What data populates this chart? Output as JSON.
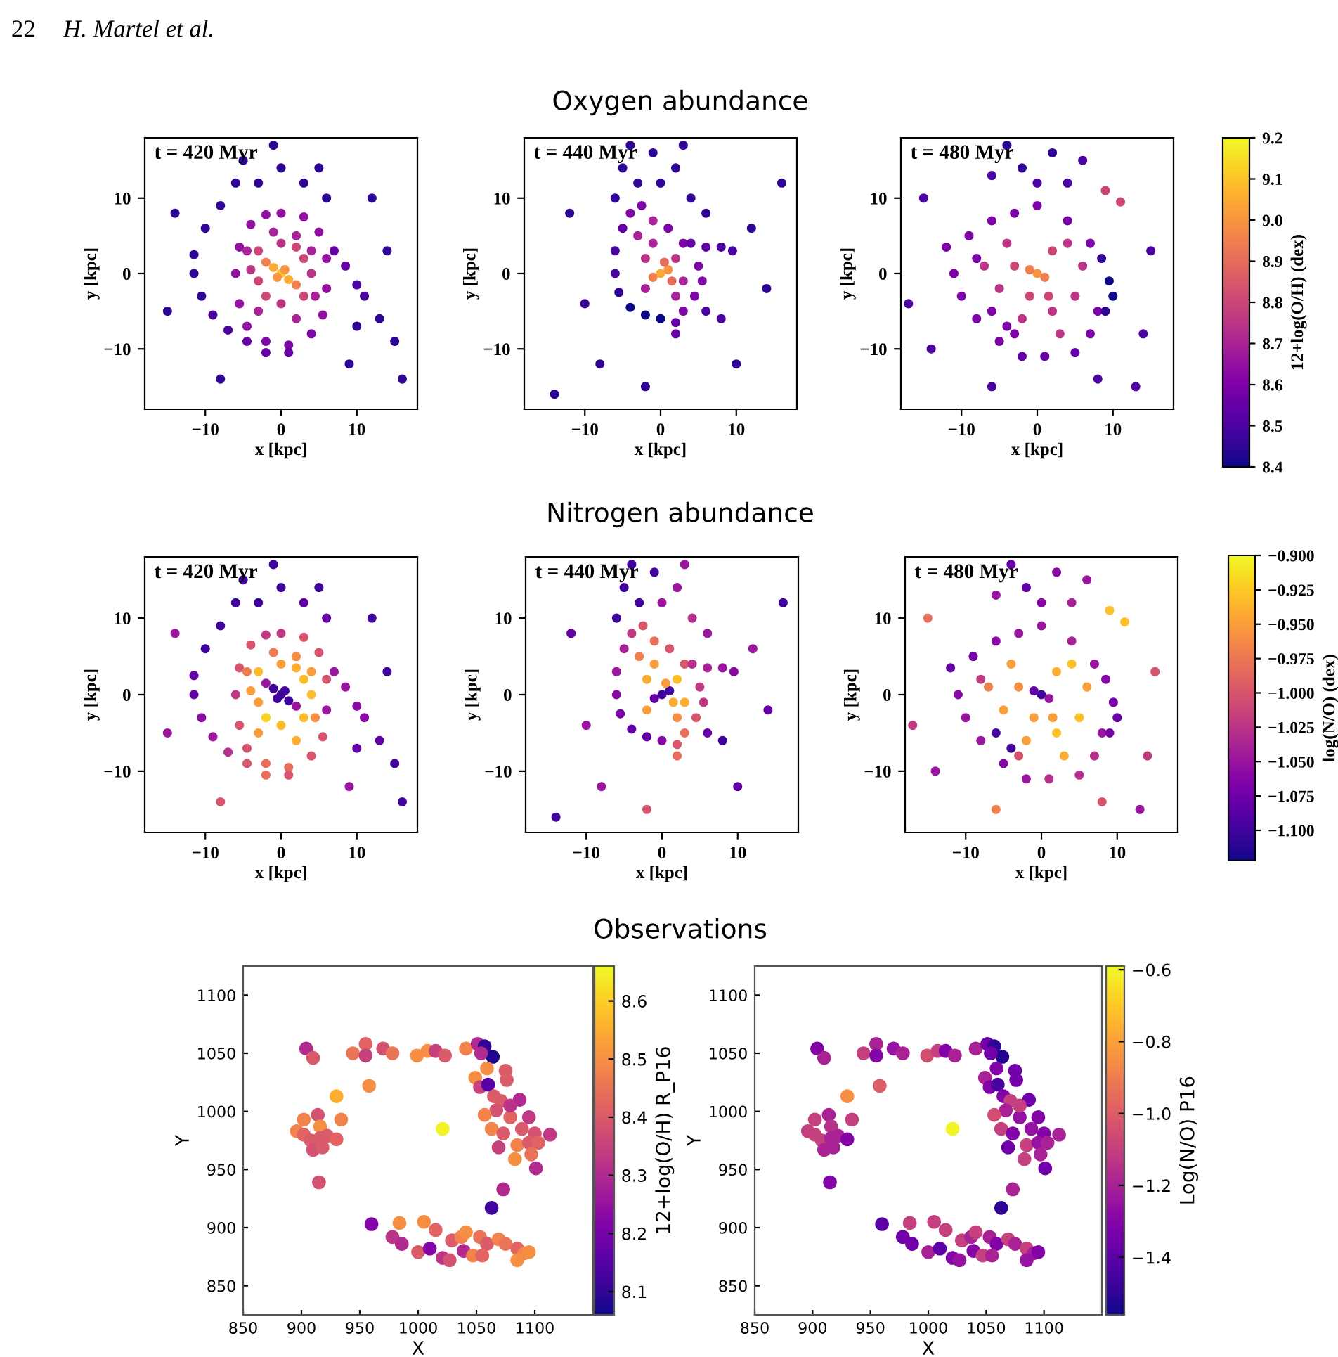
{
  "chart_data": [
    {
      "type": "scatter",
      "annotations": [
        "t = 420 Myr",
        "22",
        "H. Martel et al."
      ],
      "xlabel": "x [kpc]",
      "ylabel": "y [kpc]",
      "xlim": [
        -18,
        18
      ],
      "ylim": [
        -18,
        18
      ],
      "xticks": [
        -10,
        0,
        10
      ],
      "yticks": [
        -10,
        0,
        10
      ],
      "marker": "circle",
      "series": [
        {
          "x": [
            0,
            -1,
            1,
            -2,
            2,
            -0.5,
            0.5,
            -3,
            3,
            -3,
            3,
            0,
            0,
            -4,
            4,
            -2,
            2,
            0,
            3,
            5,
            6,
            6,
            5.5,
            4,
            1,
            -2,
            -4.5,
            -5.5,
            -6,
            -5.5,
            -4,
            -2,
            -1,
            2,
            4,
            -4.5,
            4.5,
            -3,
            2,
            -6,
            -8,
            -10,
            -11.5,
            -11.5,
            -10.5,
            -9,
            -7,
            -4.5,
            -2,
            1,
            7,
            8.5,
            10,
            11,
            -3,
            0,
            3,
            6,
            -1,
            5,
            -5,
            13,
            15,
            9,
            14,
            -15,
            -14,
            10,
            -8,
            16,
            12
          ],
          "values": [
            0,
            0.8,
            -0.8,
            1.5,
            -1.5,
            -0.5,
            0.5,
            3,
            -3,
            -1,
            2,
            4,
            -4,
            0.5,
            0,
            -3,
            3.5,
            8,
            7.5,
            5.5,
            2,
            -2,
            -5.5,
            -8,
            -9.5,
            -9,
            -7,
            -4,
            0,
            3.5,
            6.5,
            7.8,
            5.5,
            5,
            3,
            3,
            -3,
            -5,
            -6,
            12,
            9,
            6,
            2.5,
            0,
            -3,
            -5.5,
            -7.5,
            -9,
            -10.5,
            -10.5,
            3,
            1,
            -1.5,
            -3,
            12,
            14,
            12,
            10,
            17,
            14,
            15,
            -6,
            -9,
            -12,
            3,
            -5,
            8,
            -7,
            -14,
            -14,
            10
          ],
          "colors": [
            "#fcc429",
            "#fcab34",
            "#fcab34",
            "#f0804e",
            "#f0804e",
            "#f79540",
            "#f79540",
            "#cc4778",
            "#cc4778",
            "#cc4778",
            "#cc4778",
            "#bb3587",
            "#bb3587",
            "#bb3587",
            "#bb3587",
            "#cc4778",
            "#cc4778",
            "#9311a1",
            "#9311a1",
            "#9311a1",
            "#9311a1",
            "#9311a1",
            "#9311a1",
            "#7d06a6",
            "#7d06a6",
            "#7d06a6",
            "#9311a1",
            "#9311a1",
            "#9311a1",
            "#9311a1",
            "#9311a1",
            "#9311a1",
            "#a82395",
            "#a82395",
            "#a82395",
            "#a82395",
            "#a82395",
            "#a82395",
            "#a82395",
            "#2e0595",
            "#2e0595",
            "#2e0595",
            "#2e0595",
            "#2e0595",
            "#2e0595",
            "#4b03a0",
            "#4b03a0",
            "#6500a7",
            "#6500a7",
            "#6500a7",
            "#6500a7",
            "#6500a7",
            "#4b03a0",
            "#4b03a0",
            "#2e0595",
            "#2e0595",
            "#2e0595",
            "#2e0595",
            "#2e0595",
            "#2e0595",
            "#2e0595",
            "#2e0595",
            "#2e0595",
            "#2e0595",
            "#2e0595",
            "#2e0595",
            "#2e0595",
            "#2e0595",
            "#2e0595",
            "#2e0595",
            "#2e0595"
          ]
        }
      ]
    },
    {
      "type": "scatter",
      "title": "Oxygen abundance",
      "annotations": [
        "t = 440 Myr"
      ],
      "xlabel": "x [kpc]",
      "ylabel": "y [kpc]",
      "xlim": [
        -18,
        18
      ],
      "ylim": [
        -18,
        18
      ],
      "xticks": [
        -10,
        0,
        10
      ],
      "yticks": [
        -10,
        0,
        10
      ],
      "marker": "circle",
      "series": [
        {
          "x": [
            0,
            1,
            -1,
            0.5,
            1.5,
            -2,
            2,
            -2,
            3,
            -1,
            2,
            -3,
            -1,
            -2.5,
            -4,
            -5,
            -6,
            -6,
            -5.5,
            -4,
            -2,
            0,
            2,
            3,
            4.5,
            5.5,
            5,
            3,
            1,
            4,
            6,
            8,
            9.5,
            -3,
            0,
            2,
            -1,
            -5,
            4,
            6,
            -6,
            3,
            -4,
            6,
            8,
            2,
            -12,
            12,
            14,
            -10,
            -8,
            10,
            -14,
            16,
            -2
          ],
          "values": [
            0,
            0.5,
            -0.5,
            1.5,
            -1,
            2,
            2,
            -2,
            -1,
            4,
            -3,
            5,
            7,
            9,
            8,
            6,
            3,
            0,
            -2.5,
            -4.5,
            -5.5,
            -6,
            -6.5,
            -5,
            -3,
            -1,
            1,
            4,
            6,
            4,
            3.5,
            3.5,
            3,
            12,
            12,
            14,
            16,
            14,
            10,
            8,
            10,
            17,
            17,
            -5,
            -6,
            -8,
            8,
            6,
            -2,
            -4,
            -12,
            -12,
            -16,
            12,
            -15
          ],
          "colors": [
            "#fcab34",
            "#f79540",
            "#f0804e",
            "#e56c5c",
            "#e56c5c",
            "#bb3587",
            "#bb3587",
            "#a82395",
            "#a82395",
            "#a82395",
            "#a82395",
            "#a82395",
            "#a82395",
            "#7d06a6",
            "#7d06a6",
            "#6500a7",
            "#4b03a0",
            "#4b03a0",
            "#2e0595",
            "#0d0887",
            "#0d0887",
            "#0d0887",
            "#6500a7",
            "#7d06a6",
            "#7d06a6",
            "#7d06a6",
            "#7d06a6",
            "#7d06a6",
            "#7d06a6",
            "#6500a7",
            "#6500a7",
            "#4b03a0",
            "#4b03a0",
            "#2e0595",
            "#2e0595",
            "#2e0595",
            "#2e0595",
            "#2e0595",
            "#2e0595",
            "#2e0595",
            "#2e0595",
            "#2e0595",
            "#2e0595",
            "#4b03a0",
            "#4b03a0",
            "#6500a7",
            "#2e0595",
            "#2e0595",
            "#2e0595",
            "#2e0595",
            "#2e0595",
            "#2e0595",
            "#2e0595",
            "#2e0595",
            "#2e0595"
          ]
        }
      ]
    },
    {
      "type": "scatter",
      "annotations": [
        "t = 480 Myr"
      ],
      "xlabel": "x [kpc]",
      "ylabel": "y [kpc]",
      "xlim": [
        -18,
        18
      ],
      "ylim": [
        -18,
        18
      ],
      "xticks": [
        -10,
        0,
        10
      ],
      "yticks": [
        -10,
        0,
        10
      ],
      "marker": "circle",
      "clim": [
        8.4,
        9.2
      ],
      "clabel": "12+log(O/H) (dex)",
      "cticks": [
        8.4,
        8.5,
        8.6,
        8.7,
        8.8,
        8.9,
        {
          "value": 9.0,
          "label": "9.0"
        },
        9.1,
        9.2
      ],
      "series": [
        {
          "x": [
            0,
            -1,
            1,
            1.5,
            2,
            -4,
            4,
            -5,
            5,
            -2,
            3,
            -7,
            6,
            -3,
            2,
            -1,
            0,
            -3,
            -6,
            -9,
            -12,
            -11,
            -10,
            -8,
            -5,
            -2,
            1,
            5,
            7,
            8,
            4,
            7,
            -8,
            -3,
            8.5,
            9.5,
            10,
            9,
            -2,
            2,
            -6,
            4,
            -4,
            6,
            0,
            9,
            11,
            -15,
            14,
            15,
            -14,
            -6,
            8,
            -17,
            13,
            -4,
            -6
          ],
          "values": [
            0,
            0.5,
            -0.5,
            -3,
            -5,
            4,
            4,
            -2,
            -3,
            -6,
            -8,
            1,
            1,
            1,
            3,
            -3,
            9,
            8,
            7,
            5,
            3.5,
            0,
            -3,
            -6,
            -9,
            -11,
            -11,
            -10.5,
            -8,
            -5,
            7,
            4,
            2,
            -8,
            2,
            -1,
            -3,
            -5,
            14,
            16,
            13,
            12,
            17,
            15,
            12,
            11,
            9.5,
            10,
            -8,
            3,
            -10,
            -15,
            -14,
            -4,
            -15,
            -7,
            -5
          ],
          "cvalues": [
            9.0,
            8.95,
            8.95,
            8.8,
            8.75,
            8.75,
            8.75,
            8.75,
            8.75,
            8.75,
            8.75,
            8.75,
            8.75,
            8.8,
            8.8,
            8.8,
            8.6,
            8.6,
            8.6,
            8.6,
            8.6,
            8.6,
            8.6,
            8.6,
            8.6,
            8.55,
            8.55,
            8.55,
            8.6,
            8.6,
            8.6,
            8.6,
            8.6,
            8.6,
            8.45,
            8.4,
            8.4,
            8.45,
            8.45,
            8.45,
            8.5,
            8.5,
            8.45,
            8.5,
            8.5,
            8.8,
            8.8,
            8.5,
            8.5,
            8.5,
            8.5,
            8.5,
            8.5,
            8.5,
            8.5,
            8.6,
            8.6
          ]
        }
      ]
    },
    {
      "type": "scatter",
      "annotations": [
        "t = 420 Myr"
      ],
      "xlabel": "x [kpc]",
      "ylabel": "y [kpc]",
      "xlim": [
        -18,
        18
      ],
      "ylim": [
        -18,
        18
      ],
      "xticks": [
        -10,
        0,
        10
      ],
      "yticks": [
        -10,
        0,
        10
      ],
      "marker": "circle",
      "series": [
        {
          "x": [
            0,
            -1,
            1,
            -2,
            2,
            -0.5,
            0.5,
            -3,
            3,
            -3,
            3,
            0,
            0,
            -4,
            4,
            -2,
            2,
            0,
            3,
            5,
            6,
            6,
            5.5,
            4,
            1,
            -2,
            -4.5,
            -5.5,
            -6,
            -5.5,
            -4,
            -2,
            -1,
            2,
            4,
            -4.5,
            4.5,
            -3,
            2,
            -6,
            -8,
            -10,
            -11.5,
            -11.5,
            -10.5,
            -9,
            -7,
            -4.5,
            -2,
            1,
            7,
            8.5,
            10,
            11,
            -3,
            0,
            3,
            6,
            -1,
            5,
            -5,
            13,
            15,
            9,
            14,
            -15,
            -14,
            10,
            -8,
            16,
            12
          ],
          "values": [
            0,
            0.8,
            -0.8,
            1.5,
            -1.5,
            -0.5,
            0.5,
            3,
            -3,
            -1,
            2,
            4,
            -4,
            0.5,
            0,
            -3,
            3.5,
            8,
            7.5,
            5.5,
            2,
            -2,
            -5.5,
            -8,
            -9.5,
            -9,
            -7,
            -4,
            0,
            3.5,
            6.5,
            7.8,
            5.5,
            5,
            3,
            3,
            -3,
            -5,
            -6,
            12,
            9,
            6,
            2.5,
            0,
            -3,
            -5.5,
            -7.5,
            -9,
            -10.5,
            -10.5,
            3,
            1,
            -1.5,
            -3,
            12,
            14,
            12,
            10,
            17,
            14,
            15,
            -6,
            -9,
            -12,
            3,
            -5,
            8,
            -7,
            -14,
            -14,
            10
          ],
          "colors": [
            "#40049d",
            "#40049d",
            "#40049d",
            "#9a169f",
            "#9a169f",
            "#40049d",
            "#40049d",
            "#fdbd2b",
            "#fdbd2b",
            "#fa9e3b",
            "#fdbd2b",
            "#fa9e3b",
            "#fdbd2b",
            "#fa9e3b",
            "#fdbd2b",
            "#fbd124",
            "#fcad32",
            "#c03a83",
            "#d7566c",
            "#d7566c",
            "#d7566c",
            "#9a169f",
            "#d7566c",
            "#d7566c",
            "#e86d5a",
            "#e86d5a",
            "#d7566c",
            "#d7566c",
            "#c03a83",
            "#d7566c",
            "#d7566c",
            "#c03a83",
            "#ef7d50",
            "#f58e44",
            "#fa9e3b",
            "#ef7d50",
            "#f58e44",
            "#fa9e3b",
            "#fcad32",
            "#40049d",
            "#40049d",
            "#40049d",
            "#6500a7",
            "#6500a7",
            "#8a09a5",
            "#9a169f",
            "#b52f8c",
            "#d7566c",
            "#e86d5a",
            "#d7566c",
            "#9a169f",
            "#9a169f",
            "#8a09a5",
            "#8a09a5",
            "#40049d",
            "#40049d",
            "#6500a7",
            "#6500a7",
            "#40049d",
            "#40049d",
            "#40049d",
            "#6500a7",
            "#40049d",
            "#9a169f",
            "#40049d",
            "#9a169f",
            "#9a169f",
            "#6500a7",
            "#d7566c",
            "#40049d",
            "#40049d"
          ]
        }
      ]
    },
    {
      "type": "scatter",
      "title": "Nitrogen abundance",
      "annotations": [
        "t = 440 Myr"
      ],
      "xlabel": "x [kpc]",
      "ylabel": "y [kpc]",
      "xlim": [
        -18,
        18
      ],
      "ylim": [
        -18,
        18
      ],
      "xticks": [
        -10,
        0,
        10
      ],
      "yticks": [
        -10,
        0,
        10
      ],
      "marker": "circle",
      "series": [
        {
          "x": [
            0,
            1,
            -1,
            0.5,
            1.5,
            -2,
            2,
            -2,
            3,
            -1,
            2,
            -3,
            -1,
            -2.5,
            -4,
            -5,
            -6,
            -6,
            -5.5,
            -4,
            -2,
            0,
            2,
            3,
            4.5,
            5.5,
            5,
            3,
            1,
            4,
            6,
            8,
            9.5,
            -3,
            0,
            2,
            -1,
            -5,
            4,
            6,
            -6,
            3,
            -4,
            6,
            8,
            2,
            -12,
            12,
            14,
            -10,
            -8,
            10,
            -14,
            16,
            -2
          ],
          "values": [
            0,
            0.5,
            -0.5,
            1.5,
            -1,
            2,
            2,
            -2,
            -1,
            4,
            -3,
            5,
            7,
            9,
            8,
            6,
            3,
            0,
            -2.5,
            -4.5,
            -5.5,
            -6,
            -6.5,
            -5,
            -3,
            -1,
            1,
            4,
            6,
            4,
            3.5,
            3.5,
            3,
            12,
            12,
            14,
            16,
            14,
            10,
            8,
            10,
            17,
            17,
            -5,
            -6,
            -8,
            8,
            6,
            -2,
            -4,
            -12,
            -12,
            -16,
            12,
            -15
          ],
          "colors": [
            "#40049d",
            "#40049d",
            "#6500a7",
            "#fa9e3b",
            "#fcad32",
            "#fcad32",
            "#fdbd2b",
            "#fa9e3b",
            "#fcad32",
            "#fa9e3b",
            "#f58e44",
            "#ef7d50",
            "#e86d5a",
            "#d7566c",
            "#c03a83",
            "#a82296",
            "#9a169f",
            "#8a09a5",
            "#7801a8",
            "#6500a7",
            "#6500a7",
            "#8a09a5",
            "#d7566c",
            "#e86d5a",
            "#d7566c",
            "#c03a83",
            "#c03a83",
            "#d7566c",
            "#d7566c",
            "#b52f8c",
            "#a82296",
            "#9a169f",
            "#8a09a5",
            "#40049d",
            "#9a169f",
            "#9a169f",
            "#40049d",
            "#40049d",
            "#b52f8c",
            "#9a169f",
            "#40049d",
            "#9a169f",
            "#40049d",
            "#6500a7",
            "#40049d",
            "#e86d5a",
            "#6500a7",
            "#9a169f",
            "#6500a7",
            "#9a169f",
            "#9a169f",
            "#6500a7",
            "#40049d",
            "#40049d",
            "#d7566c"
          ]
        }
      ]
    },
    {
      "type": "scatter",
      "annotations": [
        "t = 480 Myr"
      ],
      "xlabel": "x [kpc]",
      "ylabel": "y [kpc]",
      "xlim": [
        -18,
        18
      ],
      "ylim": [
        -18,
        18
      ],
      "xticks": [
        -10,
        0,
        10
      ],
      "yticks": [
        -10,
        0,
        10
      ],
      "marker": "circle",
      "clim": [
        -1.122,
        -0.9
      ],
      "clabel": "log(N/O) (dex)",
      "cticks": [
        {
          "value": -0.9,
          "label": "−0.900"
        },
        {
          "value": -0.925,
          "label": "−0.925"
        },
        {
          "value": -0.95,
          "label": "−0.950"
        },
        {
          "value": -0.975,
          "label": "−0.975"
        },
        {
          "value": -1.0,
          "label": "−1.000"
        },
        {
          "value": -1.025,
          "label": "−1.025"
        },
        {
          "value": -1.05,
          "label": "−1.050"
        },
        {
          "value": -1.075,
          "label": "−1.075"
        },
        {
          "value": -1.1,
          "label": "−1.100"
        }
      ],
      "series": [
        {
          "x": [
            0,
            -1,
            1,
            1.5,
            2,
            -4,
            4,
            -5,
            5,
            -2,
            3,
            -7,
            6,
            -3,
            2,
            -1,
            0,
            -3,
            -6,
            -9,
            -12,
            -11,
            -10,
            -8,
            -5,
            -2,
            1,
            5,
            7,
            8,
            4,
            7,
            -8,
            -3,
            8.5,
            9.5,
            10,
            9,
            -2,
            2,
            -6,
            4,
            -4,
            6,
            0,
            9,
            11,
            -15,
            14,
            15,
            -14,
            -6,
            8,
            -17,
            13,
            -4,
            -6
          ],
          "values": [
            0,
            0.5,
            -0.5,
            -3,
            -5,
            4,
            4,
            -2,
            -3,
            -6,
            -8,
            1,
            1,
            1,
            3,
            -3,
            9,
            8,
            7,
            5,
            3.5,
            0,
            -3,
            -6,
            -9,
            -11,
            -11,
            -10.5,
            -8,
            -5,
            7,
            4,
            2,
            -8,
            2,
            -1,
            -3,
            -5,
            14,
            16,
            13,
            12,
            17,
            15,
            12,
            11,
            9.5,
            10,
            -8,
            3,
            -10,
            -15,
            -14,
            -4,
            -15,
            -7,
            -5
          ],
          "cvalues": [
            -1.1,
            -1.08,
            -1.05,
            -0.95,
            -0.93,
            -0.95,
            -0.93,
            -0.95,
            -0.93,
            -0.95,
            -0.94,
            -0.97,
            -0.95,
            -0.96,
            -0.94,
            -0.95,
            -1.05,
            -1.05,
            -1.06,
            -1.07,
            -1.08,
            -1.06,
            -1.05,
            -1.05,
            -1.06,
            -1.05,
            -1.03,
            -1.03,
            -1.03,
            -1.05,
            -1.04,
            -1.05,
            -1.02,
            -1.0,
            -1.06,
            -1.07,
            -1.08,
            -1.07,
            -1.08,
            -1.06,
            -1.05,
            -1.04,
            -1.08,
            -1.05,
            -1.06,
            -0.93,
            -0.93,
            -0.98,
            -1.02,
            -1.0,
            -1.05,
            -0.97,
            -1.0,
            -1.02,
            -1.05,
            -1.1,
            -1.1
          ]
        }
      ]
    },
    {
      "type": "scatter",
      "annotations": [
        "Observations"
      ],
      "xlabel": "X",
      "ylabel": "Y",
      "xlim": [
        850,
        1150
      ],
      "ylim": [
        825,
        1125
      ],
      "xticks": [
        850,
        900,
        950,
        1000,
        1050,
        1100
      ],
      "yticks": [
        850,
        900,
        950,
        1000,
        1050,
        1100
      ],
      "marker": "circle",
      "clim": [
        8.06,
        8.66
      ],
      "clabel": "12+log(O/H) R_P16",
      "cticks": [
        8.1,
        8.2,
        8.3,
        8.4,
        8.5,
        8.6
      ],
      "series": [
        {
          "x": [
            904,
            910,
            944,
            955,
            955,
            970,
            978,
            999,
            1008,
            1015,
            1023,
            1041,
            1051,
            1057,
            1064,
            1054,
            1049,
            1053,
            1060,
            1076,
            1065,
            1087,
            1071,
            1067,
            1079,
            1095,
            1063,
            1073,
            1089,
            1100,
            1113,
            1069,
            1085,
            1095,
            1103,
            1097,
            1083,
            1101,
            1073,
            1063,
            960,
            984,
            978,
            986,
            1005,
            1000,
            1010,
            1015,
            1021,
            1027,
            1029,
            1037,
            1041,
            1039,
            1047,
            1053,
            1059,
            1055,
            1069,
            1075,
            1085,
            1091,
            1095,
            1085,
            958,
            930,
            934,
            914,
            902,
            916,
            896,
            902,
            908,
            916,
            922,
            930,
            910,
            918,
            915,
            1021,
            1059,
            1075,
            1057,
            1079
          ],
          "values": [
            1054,
            1046,
            1050,
            1058,
            1048,
            1054,
            1050,
            1048,
            1052,
            1052,
            1048,
            1054,
            1058,
            1056,
            1047,
            1050,
            1029,
            1021,
            1023,
            1027,
            1013,
            1010,
            1009,
            1001,
            995,
            995,
            985,
            981,
            985,
            981,
            980,
            969,
            971,
            973,
            973,
            963,
            959,
            951,
            933,
            917,
            903,
            904,
            892,
            886,
            905,
            879,
            882,
            898,
            874,
            872,
            889,
            892,
            896,
            880,
            876,
            892,
            886,
            876,
            890,
            886,
            882,
            878,
            879,
            872,
            1022,
            1013,
            993,
            997,
            993,
            987,
            983,
            980,
            975,
            977,
            979,
            976,
            967,
            969,
            939,
            985,
            1037,
            1035,
            997,
            1005
          ],
          "cvalues": [
            8.3,
            8.4,
            8.45,
            8.42,
            8.35,
            8.38,
            8.45,
            8.5,
            8.5,
            8.35,
            8.4,
            8.48,
            8.3,
            8.1,
            8.08,
            8.3,
            8.5,
            8.35,
            8.15,
            8.4,
            8.4,
            8.3,
            8.4,
            8.38,
            8.42,
            8.33,
            8.48,
            8.4,
            8.4,
            8.38,
            8.33,
            8.35,
            8.48,
            8.4,
            8.42,
            8.45,
            8.5,
            8.3,
            8.3,
            8.12,
            8.22,
            8.5,
            8.32,
            8.3,
            8.5,
            8.4,
            8.22,
            8.42,
            8.32,
            8.38,
            8.4,
            8.48,
            8.5,
            8.3,
            8.48,
            8.45,
            8.4,
            8.42,
            8.48,
            8.45,
            8.42,
            8.48,
            8.5,
            8.5,
            8.5,
            8.55,
            8.48,
            8.38,
            8.48,
            8.5,
            8.48,
            8.42,
            8.4,
            8.4,
            8.4,
            8.42,
            8.38,
            8.4,
            8.38,
            8.65,
            8.5,
            8.4,
            8.48,
            8.32
          ]
        }
      ]
    },
    {
      "type": "scatter",
      "xlabel": "X",
      "ylabel": "Y",
      "xlim": [
        850,
        1150
      ],
      "ylim": [
        825,
        1125
      ],
      "xticks": [
        850,
        900,
        950,
        1000,
        1050,
        1100
      ],
      "yticks": [
        850,
        900,
        950,
        1000,
        1050,
        1100
      ],
      "marker": "circle",
      "clim": [
        -1.56,
        -0.59
      ],
      "clabel": "Log(N/O) P16",
      "cticks": [
        {
          "value": -1.4,
          "label": "−1.4"
        },
        {
          "value": -1.2,
          "label": "−1.2"
        },
        {
          "value": -1.0,
          "label": "−1.0"
        },
        {
          "value": -0.8,
          "label": "−0.8"
        },
        {
          "value": -0.6,
          "label": "−0.6"
        }
      ],
      "series": [
        {
          "x": [
            904,
            910,
            944,
            955,
            955,
            970,
            978,
            999,
            1008,
            1015,
            1023,
            1041,
            1051,
            1057,
            1064,
            1054,
            1049,
            1053,
            1060,
            1076,
            1065,
            1087,
            1071,
            1067,
            1079,
            1095,
            1063,
            1073,
            1089,
            1100,
            1113,
            1069,
            1085,
            1095,
            1103,
            1097,
            1083,
            1101,
            1073,
            1063,
            960,
            984,
            978,
            986,
            1005,
            1000,
            1010,
            1015,
            1021,
            1027,
            1029,
            1037,
            1041,
            1039,
            1047,
            1053,
            1059,
            1055,
            1069,
            1075,
            1085,
            1091,
            1095,
            1085,
            958,
            930,
            934,
            914,
            902,
            916,
            896,
            902,
            908,
            916,
            922,
            930,
            910,
            918,
            915,
            1021,
            1059,
            1075,
            1057,
            1079
          ],
          "values": [
            1054,
            1046,
            1050,
            1058,
            1048,
            1054,
            1050,
            1048,
            1052,
            1052,
            1048,
            1054,
            1058,
            1056,
            1047,
            1050,
            1029,
            1021,
            1023,
            1027,
            1013,
            1010,
            1009,
            1001,
            995,
            995,
            985,
            981,
            985,
            981,
            980,
            969,
            971,
            973,
            973,
            963,
            959,
            951,
            933,
            917,
            903,
            904,
            892,
            886,
            905,
            879,
            882,
            898,
            874,
            872,
            889,
            892,
            896,
            880,
            876,
            892,
            886,
            876,
            890,
            886,
            882,
            878,
            879,
            872,
            1022,
            1013,
            993,
            997,
            993,
            987,
            983,
            980,
            975,
            977,
            979,
            976,
            967,
            969,
            939,
            985,
            1037,
            1035,
            997,
            1005
          ],
          "cvalues": [
            -1.3,
            -1.2,
            -1.1,
            -1.2,
            -1.3,
            -1.25,
            -1.2,
            -1.05,
            -1.1,
            -1.3,
            -1.2,
            -1.2,
            -1.35,
            -1.5,
            -1.52,
            -1.35,
            -1.2,
            -1.3,
            -1.45,
            -1.35,
            -1.3,
            -1.35,
            -1.1,
            -1.2,
            -1.25,
            -1.3,
            -1.1,
            -1.3,
            -1.25,
            -1.3,
            -1.2,
            -1.35,
            -1.1,
            -1.25,
            -1.2,
            -1.2,
            -1.1,
            -1.35,
            -1.2,
            -1.5,
            -1.4,
            -1.1,
            -1.35,
            -1.35,
            -1.1,
            -1.2,
            -1.4,
            -1.1,
            -1.3,
            -1.25,
            -1.1,
            -1.2,
            -1.1,
            -1.3,
            -1.1,
            -1.2,
            -1.3,
            -1.2,
            -1.1,
            -1.2,
            -1.1,
            -1.2,
            -1.3,
            -1.25,
            -1.0,
            -0.85,
            -1.1,
            -1.2,
            -1.1,
            -1.15,
            -1.1,
            -1.1,
            -1.1,
            -1.2,
            -1.2,
            -1.3,
            -1.2,
            -1.2,
            -1.3,
            -0.6,
            -1.3,
            -1.35,
            -1.05,
            -1.1
          ]
        }
      ]
    }
  ]
}
